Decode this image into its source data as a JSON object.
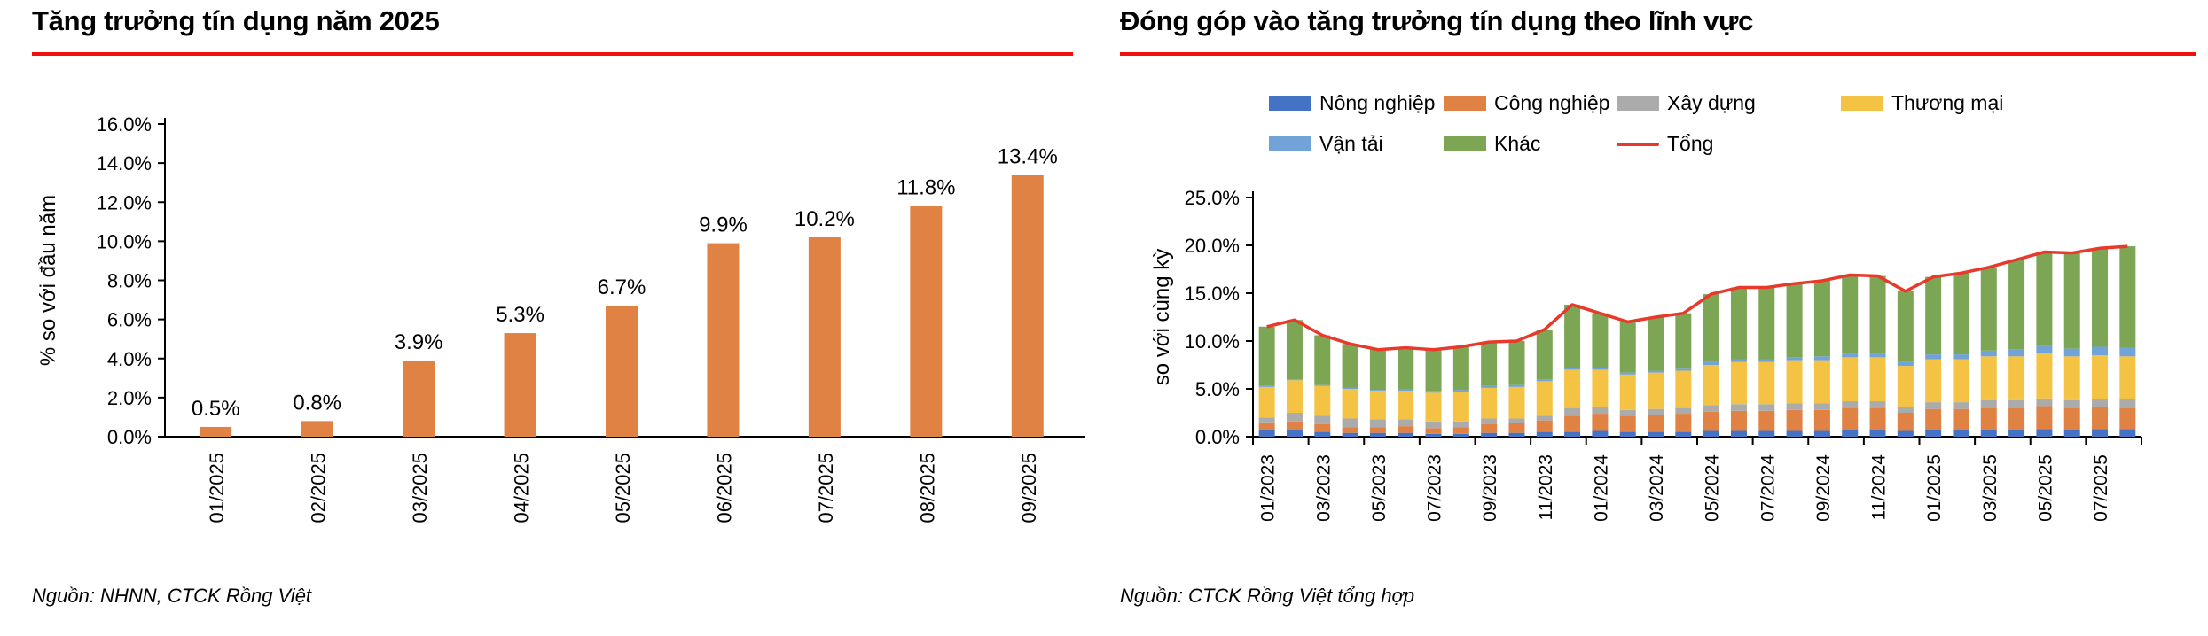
{
  "style": {
    "accent_red": "#F10E0E",
    "axis_color": "#000000"
  },
  "chart_data": [
    {
      "type": "bar",
      "title": "Tăng trưởng tín dụng năm 2025",
      "source": "Nguồn: NHNN, CTCK Rồng Việt",
      "ylabel": "% so với đầu năm",
      "ylim": [
        0,
        16
      ],
      "ytick_step": 2,
      "ytick_format": "one_decimal_percent",
      "grid": false,
      "bar_color": "#DF8244",
      "categories": [
        "01/2025",
        "02/2025",
        "03/2025",
        "04/2025",
        "05/2025",
        "06/2025",
        "07/2025",
        "08/2025",
        "09/2025"
      ],
      "values": [
        0.5,
        0.8,
        3.9,
        5.3,
        6.7,
        9.9,
        10.2,
        11.8,
        13.4
      ],
      "data_labels": [
        "0.5%",
        "0.8%",
        "3.9%",
        "5.3%",
        "6.7%",
        "9.9%",
        "10.2%",
        "11.8%",
        "13.4%"
      ]
    },
    {
      "type": "stacked_bar_line",
      "title": "Đóng góp vào tăng trưởng tín dụng theo lĩnh vực",
      "source": "Nguồn: CTCK Rồng Việt tổng hợp",
      "ylabel": "so với cùng kỳ",
      "ylim": [
        0,
        25
      ],
      "ytick_step": 5,
      "ytick_format": "one_decimal_percent",
      "grid": false,
      "legend_position": "top",
      "xtick_label_every": 2,
      "categories": [
        "01/2023",
        "02/2023",
        "03/2023",
        "04/2023",
        "05/2023",
        "06/2023",
        "07/2023",
        "08/2023",
        "09/2023",
        "10/2023",
        "11/2023",
        "12/2023",
        "01/2024",
        "02/2024",
        "03/2024",
        "04/2024",
        "05/2024",
        "06/2024",
        "07/2024",
        "08/2024",
        "09/2024",
        "10/2024",
        "11/2024",
        "12/2024",
        "01/2025",
        "02/2025",
        "03/2025",
        "04/2025",
        "05/2025",
        "06/2025",
        "07/2025",
        "08/2025"
      ],
      "series": [
        {
          "name": "Nông nghiệp",
          "color": "#4472C4",
          "values": [
            0.7,
            0.7,
            0.5,
            0.4,
            0.4,
            0.4,
            0.3,
            0.3,
            0.4,
            0.4,
            0.5,
            0.5,
            0.6,
            0.5,
            0.5,
            0.5,
            0.6,
            0.6,
            0.6,
            0.6,
            0.6,
            0.7,
            0.7,
            0.6,
            0.7,
            0.7,
            0.7,
            0.7,
            0.8,
            0.7,
            0.8,
            0.8
          ]
        },
        {
          "name": "Công nghiệp",
          "color": "#DF8244",
          "values": [
            0.8,
            0.9,
            0.8,
            0.6,
            0.6,
            0.7,
            0.6,
            0.7,
            0.9,
            1.0,
            1.2,
            1.7,
            1.8,
            1.7,
            1.8,
            1.9,
            2.0,
            2.1,
            2.1,
            2.2,
            2.2,
            2.3,
            2.3,
            1.9,
            2.2,
            2.2,
            2.3,
            2.3,
            2.4,
            2.3,
            2.3,
            2.2
          ]
        },
        {
          "name": "Xây dựng",
          "color": "#ABABAB",
          "values": [
            0.5,
            0.9,
            0.9,
            0.9,
            0.8,
            0.7,
            0.7,
            0.6,
            0.6,
            0.5,
            0.5,
            0.8,
            0.7,
            0.6,
            0.6,
            0.6,
            0.7,
            0.7,
            0.7,
            0.7,
            0.7,
            0.7,
            0.7,
            0.6,
            0.7,
            0.7,
            0.8,
            0.8,
            0.8,
            0.8,
            0.8,
            0.9
          ]
        },
        {
          "name": "Thương mại",
          "color": "#F5C344",
          "values": [
            3.2,
            3.4,
            3.1,
            3.1,
            3.0,
            3.0,
            3.0,
            3.1,
            3.2,
            3.3,
            3.6,
            4.0,
            3.9,
            3.7,
            3.8,
            3.9,
            4.2,
            4.4,
            4.4,
            4.5,
            4.5,
            4.6,
            4.6,
            4.3,
            4.5,
            4.5,
            4.6,
            4.6,
            4.7,
            4.6,
            4.6,
            4.5
          ]
        },
        {
          "name": "Vận tải",
          "color": "#71A3D8",
          "values": [
            0.1,
            0.1,
            0.1,
            0.1,
            0.1,
            0.2,
            0.2,
            0.2,
            0.2,
            0.2,
            0.2,
            0.2,
            0.2,
            0.2,
            0.2,
            0.2,
            0.3,
            0.3,
            0.3,
            0.3,
            0.4,
            0.4,
            0.4,
            0.4,
            0.5,
            0.5,
            0.6,
            0.7,
            0.8,
            0.8,
            0.9,
            0.9
          ]
        },
        {
          "name": "Khác",
          "color": "#7CA554",
          "values": [
            6.2,
            6.2,
            5.2,
            4.6,
            4.2,
            4.3,
            4.3,
            4.5,
            4.6,
            4.6,
            5.2,
            6.6,
            5.7,
            5.3,
            5.6,
            5.8,
            7.1,
            7.5,
            7.5,
            7.7,
            7.9,
            8.2,
            8.1,
            7.4,
            8.1,
            8.5,
            8.7,
            9.4,
            9.8,
            10.0,
            10.3,
            10.6
          ]
        }
      ],
      "line_series": {
        "name": "Tổng",
        "color": "#E8392B",
        "values": [
          11.5,
          12.2,
          10.6,
          9.7,
          9.1,
          9.3,
          9.1,
          9.4,
          9.9,
          10.0,
          11.2,
          13.8,
          12.9,
          12.0,
          12.5,
          12.9,
          14.9,
          15.6,
          15.6,
          16.0,
          16.3,
          16.9,
          16.8,
          15.2,
          16.7,
          17.1,
          17.7,
          18.5,
          19.3,
          19.2,
          19.7,
          19.9
        ]
      }
    }
  ]
}
